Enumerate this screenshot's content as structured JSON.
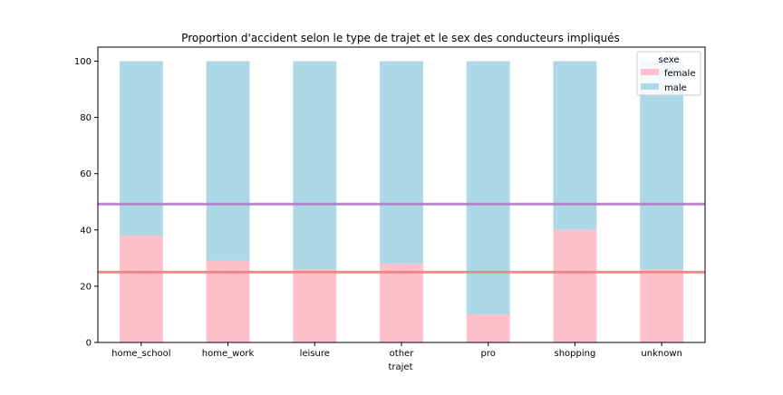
{
  "chart_data": {
    "type": "bar",
    "stacked": true,
    "title": "Proportion d'accident selon le type de trajet et le sex des conducteurs impliqués",
    "xlabel": "trajet",
    "ylabel": "",
    "ylim": [
      0,
      105
    ],
    "yticks": [
      0,
      20,
      40,
      60,
      80,
      100
    ],
    "categories": [
      "home_school",
      "home_work",
      "leisure",
      "other",
      "pro",
      "shopping",
      "unknown"
    ],
    "series": [
      {
        "name": "female",
        "color": "#ffc0cb",
        "values": [
          38,
          29,
          26,
          28,
          10,
          40,
          26
        ]
      },
      {
        "name": "male",
        "color": "#add8e6",
        "values": [
          62,
          71,
          74,
          72,
          90,
          60,
          74
        ]
      }
    ],
    "reference_lines": [
      {
        "value": 49.2,
        "color": "#b07cc6"
      },
      {
        "value": 25,
        "color": "#f08080"
      }
    ],
    "legend": {
      "title": "sexe",
      "placement": "top-right"
    },
    "grid": false
  }
}
